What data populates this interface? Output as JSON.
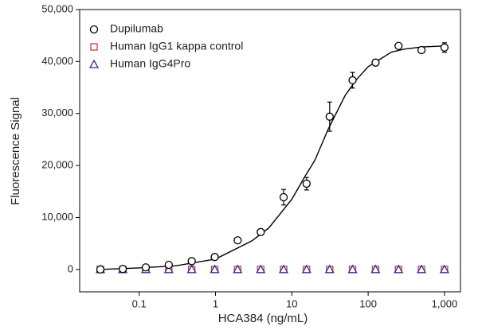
{
  "chart_data": {
    "type": "scatter",
    "xlabel": "HCA384 (ng/mL)",
    "ylabel": "Fluorescence Signal",
    "xlog": true,
    "xlim": [
      0.0166,
      1620
    ],
    "ylim": [
      -4300,
      50000
    ],
    "xticks": [
      0.1,
      1,
      10,
      100,
      {
        "value": 1000,
        "label": "1,000"
      }
    ],
    "yticks": [
      0,
      {
        "value": 10000,
        "label": "10,000"
      },
      {
        "value": 20000,
        "label": "20,000"
      },
      {
        "value": 30000,
        "label": "30,000"
      },
      {
        "value": 40000,
        "label": "40,000"
      },
      {
        "value": 50000,
        "label": "50,000"
      }
    ],
    "x": [
      0.031,
      0.061,
      0.122,
      0.244,
      0.488,
      0.977,
      1.95,
      3.91,
      7.81,
      15.6,
      31.3,
      62.5,
      125,
      250,
      500,
      1000
    ],
    "series": [
      {
        "name": "Dupilumab",
        "color": "#000000",
        "marker": "circle",
        "values": [
          0,
          100,
          400,
          900,
          1600,
          2400,
          5600,
          7200,
          13900,
          16500,
          29400,
          36400,
          39800,
          43000,
          42200,
          42700
        ],
        "errors": [
          300,
          300,
          300,
          300,
          300,
          400,
          400,
          500,
          1500,
          1200,
          2800,
          1500,
          600,
          500,
          500,
          900
        ]
      },
      {
        "name": "Human IgG1 kappa control",
        "color": "#d43c3c",
        "marker": "square",
        "values": [
          0,
          0,
          0,
          0,
          0,
          0,
          0,
          0,
          0,
          0,
          0,
          0,
          0,
          0,
          0,
          0
        ]
      },
      {
        "name": "Human IgG4Pro",
        "color": "#2e2e9e",
        "marker": "triangle",
        "values": [
          0,
          0,
          0,
          0,
          0,
          0,
          0,
          0,
          0,
          0,
          0,
          0,
          0,
          0,
          0,
          0
        ]
      }
    ],
    "curve": {
      "color": "#000000",
      "x": [
        0.03,
        0.1,
        0.3,
        1,
        3,
        5,
        10,
        15,
        20,
        30,
        50,
        70,
        100,
        200,
        300,
        500,
        1000
      ],
      "values": [
        0,
        300,
        700,
        2000,
        5500,
        8000,
        13500,
        18000,
        21000,
        27000,
        33500,
        36500,
        39000,
        41800,
        42400,
        42800,
        43000
      ]
    }
  }
}
